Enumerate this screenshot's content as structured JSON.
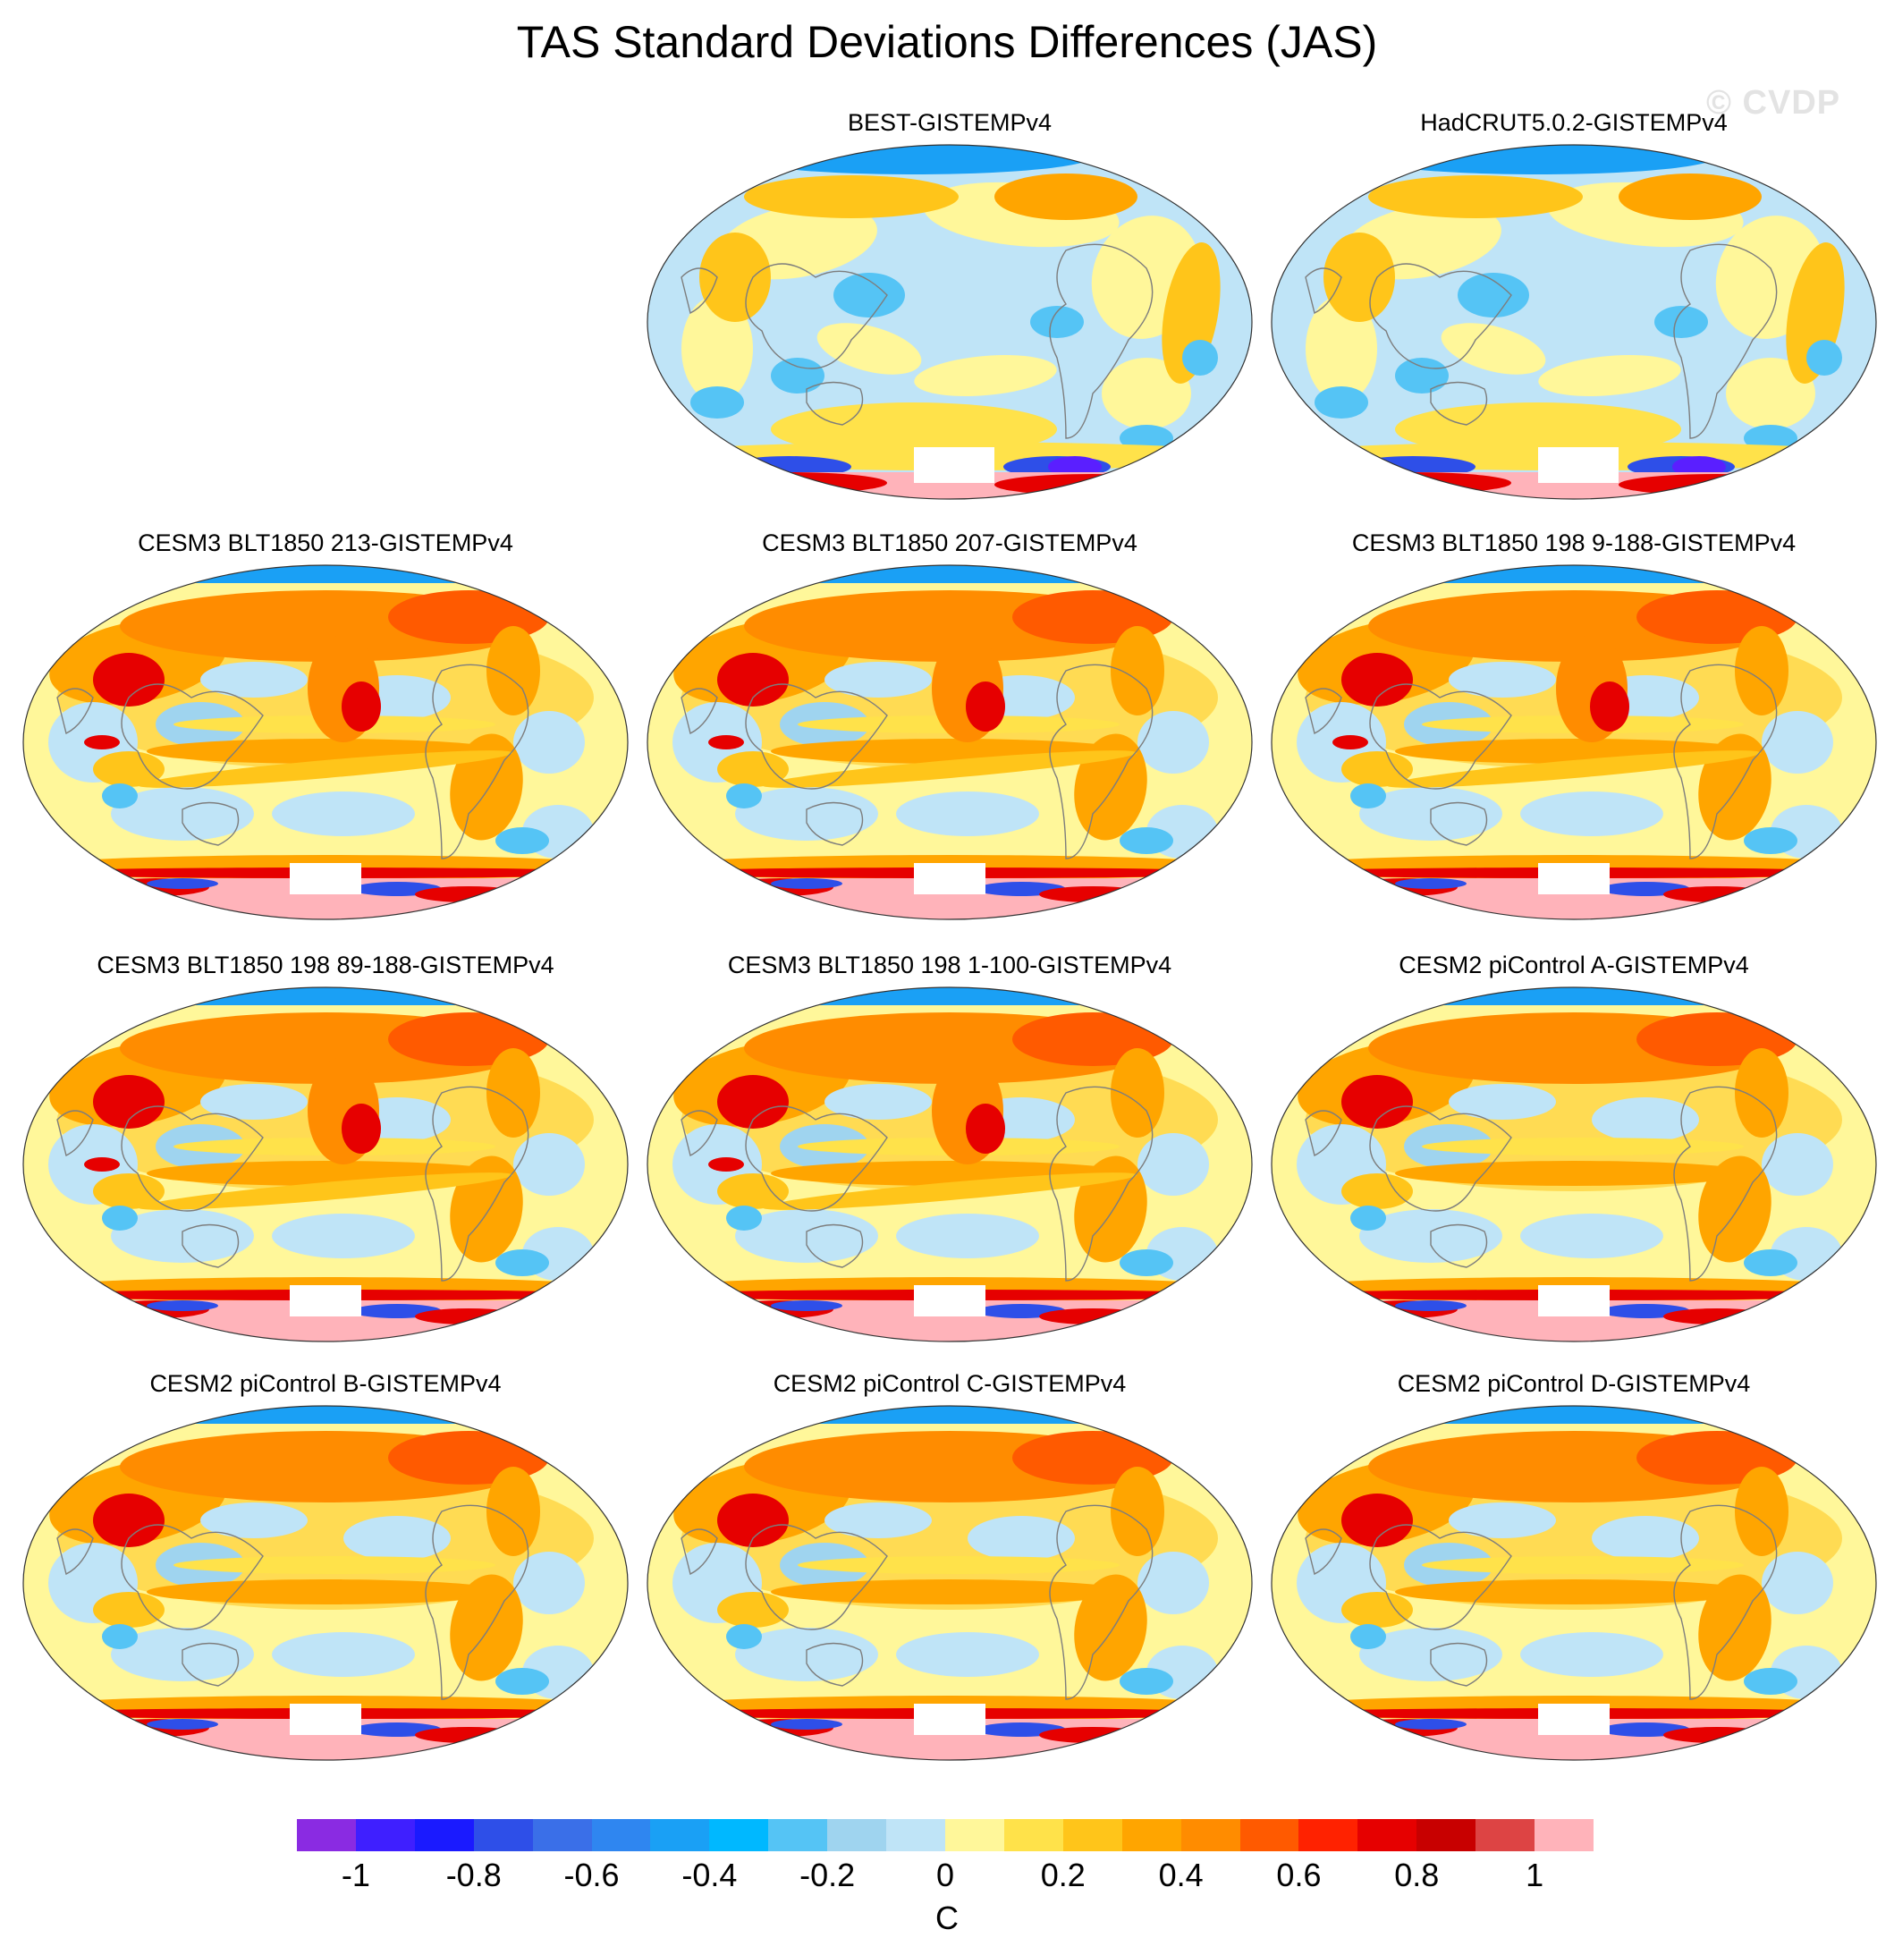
{
  "title": "TAS Standard Deviations Differences (JAS)",
  "watermark": "© CVDP",
  "panels": [
    {
      "title": "BEST-GISTEMPv4",
      "style": "obs"
    },
    {
      "title": "HadCRUT5.0.2-GISTEMPv4",
      "style": "obs"
    },
    {
      "title": "CESM3 BLT1850 213-GISTEMPv4",
      "style": "model-strong"
    },
    {
      "title": "CESM3 BLT1850 207-GISTEMPv4",
      "style": "model-strong"
    },
    {
      "title": "CESM3 BLT1850 198 9-188-GISTEMPv4",
      "style": "model-strong"
    },
    {
      "title": "CESM3 BLT1850 198 89-188-GISTEMPv4",
      "style": "model-strong"
    },
    {
      "title": "CESM3 BLT1850 198 1-100-GISTEMPv4",
      "style": "model-strong"
    },
    {
      "title": "CESM2 piControl A-GISTEMPv4",
      "style": "model"
    },
    {
      "title": "CESM2 piControl B-GISTEMPv4",
      "style": "model"
    },
    {
      "title": "CESM2 piControl C-GISTEMPv4",
      "style": "model"
    },
    {
      "title": "CESM2 piControl D-GISTEMPv4",
      "style": "model"
    }
  ],
  "colorbar": {
    "unit": "C",
    "tick_labels": [
      "-1",
      "-0.8",
      "-0.6",
      "-0.4",
      "-0.2",
      "0",
      "0.2",
      "0.4",
      "0.6",
      "0.8",
      "1"
    ],
    "colors": [
      "#8a2be2",
      "#3f1fff",
      "#1a1aff",
      "#2e4fe8",
      "#3a6fe8",
      "#2f86f0",
      "#1aa0f5",
      "#00b8ff",
      "#55c4f5",
      "#9fd4ef",
      "#bfe4f7",
      "#fff79a",
      "#ffe24a",
      "#ffc51a",
      "#ffa500",
      "#ff8c00",
      "#ff5a00",
      "#ff2200",
      "#e60000",
      "#c80000",
      "#dd4444",
      "#ffb3ba"
    ]
  }
}
